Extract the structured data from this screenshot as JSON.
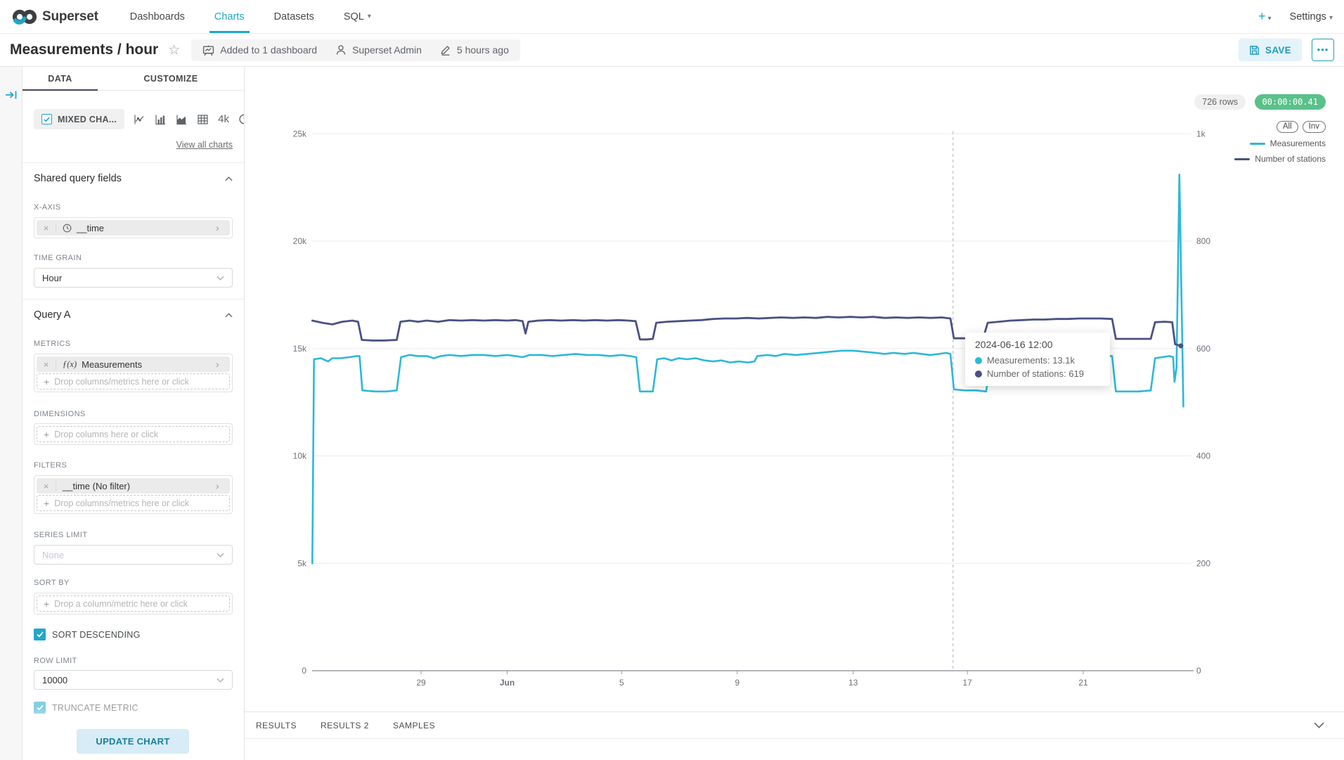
{
  "icons": {
    "caret_down": "▾",
    "star": "☆",
    "close": "×",
    "plus_small": "+",
    "chevron_right": "›",
    "more": "•••"
  },
  "navbar": {
    "brand": "Superset",
    "items": [
      {
        "label": "Dashboards"
      },
      {
        "label": "Charts"
      },
      {
        "label": "Datasets"
      },
      {
        "label": "SQL"
      }
    ],
    "plus": "+",
    "settings": "Settings"
  },
  "header": {
    "title": "Measurements / hour",
    "dashboard_badge": "Added to 1 dashboard",
    "owner_badge": "Superset Admin",
    "modified_badge": "5 hours ago",
    "save_label": "SAVE"
  },
  "panel": {
    "tabs": [
      {
        "label": "DATA"
      },
      {
        "label": "CUSTOMIZE"
      }
    ],
    "viz_chip": "MIXED CHA...",
    "viz_4k": "4k",
    "view_all": "View all charts",
    "shared_section": "Shared query fields",
    "x_axis_label": "X-AXIS",
    "x_axis_value": "__time",
    "time_grain_label": "TIME GRAIN",
    "time_grain_value": "Hour",
    "query_section": "Query A",
    "metrics_label": "METRICS",
    "metrics_fx": "ƒ(x)",
    "metrics_value": "Measurements",
    "metrics_drop": "Drop columns/metrics here or click",
    "dimensions_label": "DIMENSIONS",
    "dimensions_drop": "Drop columns here or click",
    "filters_label": "FILTERS",
    "filters_value": "__time (No filter)",
    "filters_drop": "Drop columns/metrics here or click",
    "series_limit_label": "SERIES LIMIT",
    "series_limit_placeholder": "None",
    "sort_by_label": "SORT BY",
    "sort_by_drop": "Drop a column/metric here or click",
    "sort_descending": "SORT DESCENDING",
    "row_limit_label": "ROW LIMIT",
    "row_limit_value": "10000",
    "truncate_metric": "TRUNCATE METRIC",
    "update_chart": "UPDATE CHART"
  },
  "status": {
    "rows": "726 rows",
    "timer": "00:00:00.41",
    "timer_color": "#5ac189"
  },
  "results": {
    "tabs": [
      "RESULTS",
      "RESULTS 2",
      "SAMPLES"
    ]
  },
  "chart_data": {
    "type": "line",
    "x_axis": "__time (hourly, late May to late June 2024)",
    "x_domain_days": [
      0,
      30.55
    ],
    "x_ticks": [
      {
        "t": 3.8,
        "label": "29"
      },
      {
        "t": 6.81,
        "label": "Jun",
        "bold": true
      },
      {
        "t": 10.81,
        "label": "5"
      },
      {
        "t": 14.85,
        "label": "9"
      },
      {
        "t": 18.9,
        "label": "13"
      },
      {
        "t": 22.89,
        "label": "17"
      },
      {
        "t": 26.94,
        "label": "21"
      }
    ],
    "y_left": {
      "series": "Measurements",
      "max": 25000,
      "labels": [
        "0",
        "5k",
        "10k",
        "15k",
        "20k",
        "25k"
      ]
    },
    "y_right": {
      "series": "Number of stations",
      "max": 1000,
      "labels": [
        "0",
        "200",
        "400",
        "600",
        "800",
        "1k"
      ]
    },
    "grid": true,
    "legend": {
      "position": "top-right",
      "buttons": [
        "All",
        "Inv"
      ],
      "items": [
        {
          "name": "Measurements",
          "color": "#2cb8d8"
        },
        {
          "name": "Number of stations",
          "color": "#4a5182"
        }
      ]
    },
    "crosshair_t": 22.39,
    "tooltip": {
      "title": "2024-06-16 12:00",
      "separator": ": ",
      "rows": [
        {
          "name": "Measurements",
          "value": "13.1k",
          "color": "#2cb8d8"
        },
        {
          "name": "Number of stations",
          "value": "619",
          "color": "#4a5182"
        }
      ]
    },
    "series": [
      {
        "name": "Measurements",
        "axis": "left",
        "color": "#2cb8d8",
        "width": 2.6,
        "points": [
          [
            0,
            5000
          ],
          [
            0.06,
            14500
          ],
          [
            0.3,
            14550
          ],
          [
            0.55,
            14400
          ],
          [
            0.7,
            14550
          ],
          [
            1.0,
            14550
          ],
          [
            1.3,
            14600
          ],
          [
            1.55,
            14650
          ],
          [
            1.65,
            14650
          ],
          [
            1.75,
            13050
          ],
          [
            2.2,
            13000
          ],
          [
            2.6,
            13000
          ],
          [
            2.95,
            13050
          ],
          [
            3.1,
            14600
          ],
          [
            3.4,
            14700
          ],
          [
            3.7,
            14650
          ],
          [
            4.0,
            14650
          ],
          [
            4.25,
            14550
          ],
          [
            4.5,
            14650
          ],
          [
            4.8,
            14700
          ],
          [
            5.2,
            14650
          ],
          [
            5.6,
            14700
          ],
          [
            6.0,
            14700
          ],
          [
            6.4,
            14650
          ],
          [
            6.8,
            14700
          ],
          [
            7.1,
            14650
          ],
          [
            7.35,
            14600
          ],
          [
            7.6,
            14700
          ],
          [
            8.0,
            14700
          ],
          [
            8.4,
            14650
          ],
          [
            8.8,
            14700
          ],
          [
            9.2,
            14750
          ],
          [
            9.6,
            14700
          ],
          [
            10.0,
            14700
          ],
          [
            10.4,
            14650
          ],
          [
            10.8,
            14700
          ],
          [
            11.1,
            14650
          ],
          [
            11.32,
            14600
          ],
          [
            11.45,
            13000
          ],
          [
            11.7,
            13000
          ],
          [
            11.9,
            13000
          ],
          [
            12.05,
            14500
          ],
          [
            12.3,
            14550
          ],
          [
            12.55,
            14450
          ],
          [
            12.8,
            14550
          ],
          [
            13.1,
            14500
          ],
          [
            13.4,
            14550
          ],
          [
            13.7,
            14450
          ],
          [
            14.0,
            14400
          ],
          [
            14.3,
            14450
          ],
          [
            14.6,
            14350
          ],
          [
            14.9,
            14400
          ],
          [
            15.2,
            14350
          ],
          [
            15.45,
            14400
          ],
          [
            15.55,
            14650
          ],
          [
            15.9,
            14700
          ],
          [
            16.2,
            14650
          ],
          [
            16.5,
            14750
          ],
          [
            16.9,
            14700
          ],
          [
            17.3,
            14750
          ],
          [
            17.7,
            14800
          ],
          [
            18.1,
            14850
          ],
          [
            18.5,
            14900
          ],
          [
            18.9,
            14900
          ],
          [
            19.3,
            14850
          ],
          [
            19.7,
            14800
          ],
          [
            20.0,
            14750
          ],
          [
            20.3,
            14800
          ],
          [
            20.7,
            14750
          ],
          [
            21.0,
            14800
          ],
          [
            21.3,
            14750
          ],
          [
            21.6,
            14700
          ],
          [
            21.9,
            14750
          ],
          [
            22.15,
            14800
          ],
          [
            22.3,
            14750
          ],
          [
            22.42,
            13100
          ],
          [
            22.8,
            13050
          ],
          [
            23.2,
            13050
          ],
          [
            23.55,
            13000
          ],
          [
            23.7,
            14500
          ],
          [
            24.1,
            14600
          ],
          [
            24.5,
            14650
          ],
          [
            24.9,
            14600
          ],
          [
            25.3,
            14650
          ],
          [
            25.7,
            14600
          ],
          [
            26.1,
            14700
          ],
          [
            26.5,
            14650
          ],
          [
            26.9,
            14700
          ],
          [
            27.3,
            14700
          ],
          [
            27.6,
            14650
          ],
          [
            27.95,
            14650
          ],
          [
            28.08,
            13000
          ],
          [
            28.5,
            13000
          ],
          [
            28.9,
            13000
          ],
          [
            29.3,
            13050
          ],
          [
            29.45,
            14550
          ],
          [
            29.7,
            14600
          ],
          [
            29.95,
            14650
          ],
          [
            30.08,
            14600
          ],
          [
            30.13,
            13450
          ],
          [
            30.2,
            14100
          ],
          [
            30.3,
            23100
          ],
          [
            30.44,
            12300
          ]
        ]
      },
      {
        "name": "Number of stations",
        "axis": "right",
        "color": "#4a5182",
        "width": 2.8,
        "end_dot": true,
        "points": [
          [
            0,
            652
          ],
          [
            0.35,
            648
          ],
          [
            0.7,
            645
          ],
          [
            1.05,
            650
          ],
          [
            1.4,
            652
          ],
          [
            1.6,
            650
          ],
          [
            1.73,
            616
          ],
          [
            2.1,
            615
          ],
          [
            2.5,
            615
          ],
          [
            2.95,
            616
          ],
          [
            3.08,
            650
          ],
          [
            3.4,
            652
          ],
          [
            3.7,
            650
          ],
          [
            4.0,
            652
          ],
          [
            4.4,
            650
          ],
          [
            4.8,
            653
          ],
          [
            5.2,
            652
          ],
          [
            5.6,
            653
          ],
          [
            6.0,
            652
          ],
          [
            6.4,
            653
          ],
          [
            6.8,
            652
          ],
          [
            7.1,
            653
          ],
          [
            7.35,
            651
          ],
          [
            7.45,
            628
          ],
          [
            7.55,
            650
          ],
          [
            7.9,
            652
          ],
          [
            8.3,
            653
          ],
          [
            8.7,
            652
          ],
          [
            9.1,
            653
          ],
          [
            9.5,
            652
          ],
          [
            9.9,
            653
          ],
          [
            10.3,
            652
          ],
          [
            10.7,
            653
          ],
          [
            11.05,
            652
          ],
          [
            11.3,
            651
          ],
          [
            11.45,
            617
          ],
          [
            11.7,
            617
          ],
          [
            11.9,
            618
          ],
          [
            12.02,
            648
          ],
          [
            12.4,
            650
          ],
          [
            12.8,
            651
          ],
          [
            13.2,
            652
          ],
          [
            13.6,
            653
          ],
          [
            14.0,
            655
          ],
          [
            14.4,
            656
          ],
          [
            14.8,
            656
          ],
          [
            15.2,
            657
          ],
          [
            15.6,
            656
          ],
          [
            16.0,
            657
          ],
          [
            16.4,
            658
          ],
          [
            16.8,
            657
          ],
          [
            17.2,
            658
          ],
          [
            17.6,
            657
          ],
          [
            18.0,
            659
          ],
          [
            18.4,
            658
          ],
          [
            18.8,
            659
          ],
          [
            19.2,
            658
          ],
          [
            19.6,
            659
          ],
          [
            20.0,
            657
          ],
          [
            20.4,
            658
          ],
          [
            20.8,
            657
          ],
          [
            21.2,
            658
          ],
          [
            21.6,
            657
          ],
          [
            22.0,
            658
          ],
          [
            22.3,
            656
          ],
          [
            22.42,
            619
          ],
          [
            22.8,
            619
          ],
          [
            23.2,
            619
          ],
          [
            23.45,
            620
          ],
          [
            23.6,
            648
          ],
          [
            24.0,
            650
          ],
          [
            24.4,
            652
          ],
          [
            24.8,
            653
          ],
          [
            25.2,
            654
          ],
          [
            25.6,
            654
          ],
          [
            26.0,
            655
          ],
          [
            26.4,
            655
          ],
          [
            26.8,
            656
          ],
          [
            27.2,
            656
          ],
          [
            27.55,
            656
          ],
          [
            27.95,
            655
          ],
          [
            28.08,
            618
          ],
          [
            28.5,
            618
          ],
          [
            28.9,
            618
          ],
          [
            29.3,
            618
          ],
          [
            29.45,
            649
          ],
          [
            29.8,
            650
          ],
          [
            30.05,
            649
          ],
          [
            30.15,
            608
          ],
          [
            30.35,
            605
          ]
        ]
      }
    ]
  }
}
